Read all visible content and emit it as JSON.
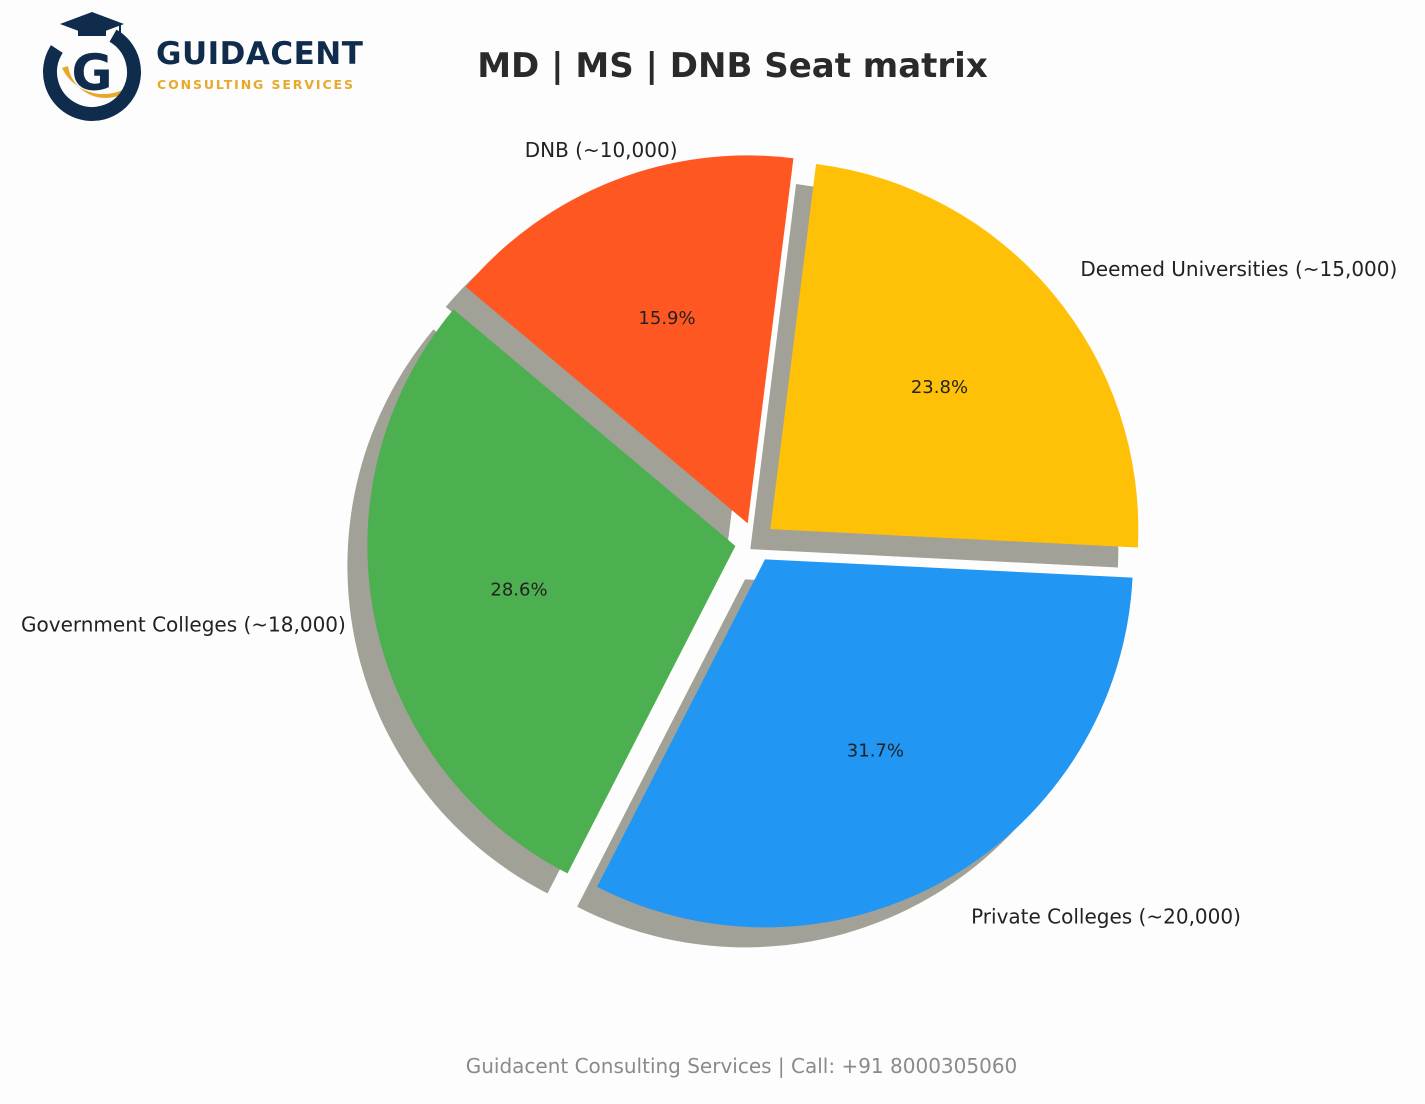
{
  "brand": {
    "name": "GUIDACENT",
    "tagline": "CONSULTING SERVICES",
    "logo_letter": "G",
    "colors": {
      "navy": "#0f2c4c",
      "gold": "#e7a92a"
    }
  },
  "chart_data": {
    "type": "pie",
    "title": "MD | MS | DNB Seat matrix",
    "categories": [
      "Government Colleges (~18,000)",
      "Private Colleges (~20,000)",
      "Deemed Universities (~15,000)",
      "DNB (~10,000)"
    ],
    "values": [
      18000,
      20000,
      15000,
      10000
    ],
    "percent_labels": [
      "28.6%",
      "31.7%",
      "23.8%",
      "15.9%"
    ],
    "colors": [
      "#4caf50",
      "#2196f3",
      "#ffc107",
      "#ff5722"
    ],
    "exploded": true,
    "shadow": true,
    "start_angle_deg": 140,
    "direction": "counterclockwise",
    "legend": "none"
  },
  "footer": {
    "text": "Guidacent Consulting Services | Call: +91 8000305060"
  }
}
